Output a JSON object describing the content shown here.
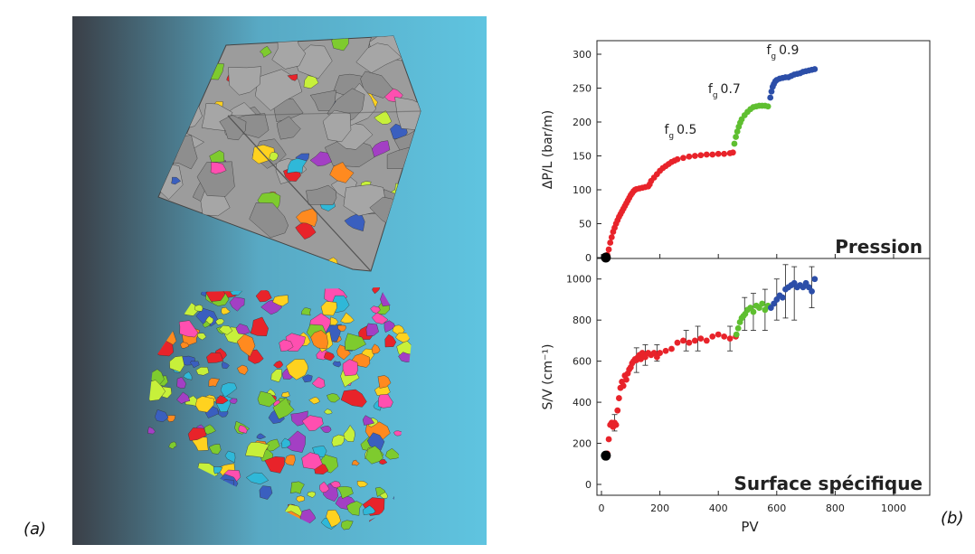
{
  "panel_labels": {
    "a": "(a)",
    "b": "(b)"
  },
  "panel_a": {
    "type": "3d-rendering",
    "cube_colors": [
      "#9c9c9c",
      "#7ecb2e",
      "#ffd21f",
      "#e8232a",
      "#3a5fbf",
      "#a33fc4",
      "#ff4fb0",
      "#2fb8d8",
      "#ff8a1f",
      "#c7f03a"
    ],
    "background": [
      "#3a3f47",
      "#5fc4e0"
    ]
  },
  "chart_data": [
    {
      "type": "scatter",
      "title": "Pression",
      "xlabel": "",
      "ylabel": "ΔP/L (bar/m)",
      "xlim": [
        0,
        1000
      ],
      "ylim": [
        0,
        320
      ],
      "x_ticks": [
        0,
        200,
        400,
        600,
        800,
        1000
      ],
      "y_ticks": [
        0,
        50,
        100,
        150,
        200,
        250,
        300
      ],
      "x_tick_labels_shown": false,
      "annotations": [
        {
          "main": "f",
          "sub": "g",
          "value": "0.5",
          "x": 215,
          "y": 183
        },
        {
          "main": "f",
          "sub": "g",
          "value": "0.7",
          "x": 365,
          "y": 243
        },
        {
          "main": "f",
          "sub": "g",
          "value": "0.9",
          "x": 565,
          "y": 300
        }
      ],
      "initial_point": {
        "x": 15,
        "y": 0,
        "color": "#000000"
      },
      "series": [
        {
          "color": "#e8232a",
          "points": [
            [
              20,
              4
            ],
            [
              25,
              12
            ],
            [
              30,
              22
            ],
            [
              35,
              30
            ],
            [
              40,
              38
            ],
            [
              45,
              44
            ],
            [
              50,
              50
            ],
            [
              55,
              55
            ],
            [
              60,
              60
            ],
            [
              65,
              64
            ],
            [
              70,
              68
            ],
            [
              75,
              72
            ],
            [
              80,
              76
            ],
            [
              85,
              80
            ],
            [
              90,
              84
            ],
            [
              95,
              88
            ],
            [
              100,
              92
            ],
            [
              105,
              95
            ],
            [
              110,
              98
            ],
            [
              115,
              100
            ],
            [
              120,
              101
            ],
            [
              130,
              102
            ],
            [
              140,
              103
            ],
            [
              150,
              104
            ],
            [
              160,
              105
            ],
            [
              165,
              108
            ],
            [
              170,
              113
            ],
            [
              180,
              118
            ],
            [
              190,
              123
            ],
            [
              200,
              128
            ],
            [
              210,
              132
            ],
            [
              220,
              135
            ],
            [
              230,
              138
            ],
            [
              240,
              141
            ],
            [
              250,
              143
            ],
            [
              260,
              145
            ],
            [
              280,
              147
            ],
            [
              300,
              149
            ],
            [
              320,
              150
            ],
            [
              340,
              151
            ],
            [
              360,
              152
            ],
            [
              380,
              152
            ],
            [
              400,
              153
            ],
            [
              420,
              153
            ],
            [
              440,
              154
            ],
            [
              450,
              155
            ]
          ]
        },
        {
          "color": "#5fbf30",
          "points": [
            [
              455,
              168
            ],
            [
              460,
              178
            ],
            [
              465,
              186
            ],
            [
              470,
              193
            ],
            [
              475,
              199
            ],
            [
              480,
              204
            ],
            [
              490,
              210
            ],
            [
              500,
              215
            ],
            [
              510,
              219
            ],
            [
              520,
              222
            ],
            [
              530,
              223
            ],
            [
              540,
              224
            ],
            [
              550,
              224
            ],
            [
              560,
              224
            ],
            [
              570,
              223
            ]
          ]
        },
        {
          "color": "#2c4ea8",
          "points": [
            [
              578,
              236
            ],
            [
              582,
              245
            ],
            [
              586,
              252
            ],
            [
              590,
              256
            ],
            [
              595,
              260
            ],
            [
              600,
              262
            ],
            [
              610,
              264
            ],
            [
              620,
              265
            ],
            [
              630,
              266
            ],
            [
              640,
              266
            ],
            [
              650,
              268
            ],
            [
              660,
              270
            ],
            [
              670,
              271
            ],
            [
              680,
              272
            ],
            [
              690,
              274
            ],
            [
              700,
              275
            ],
            [
              710,
              276
            ],
            [
              720,
              277
            ],
            [
              730,
              278
            ]
          ]
        }
      ]
    },
    {
      "type": "scatter",
      "title": "Surface spécifique",
      "xlabel": "PV",
      "ylabel": "S/V (cm⁻¹)",
      "xlim": [
        0,
        1000
      ],
      "ylim": [
        0,
        1100
      ],
      "x_ticks": [
        0,
        200,
        400,
        600,
        800,
        1000
      ],
      "y_ticks": [
        0,
        200,
        400,
        600,
        800,
        1000
      ],
      "initial_point": {
        "x": 15,
        "y": 140,
        "color": "#000000"
      },
      "series": [
        {
          "color": "#e8232a",
          "points": [
            [
              20,
              150
            ],
            [
              25,
              220
            ],
            [
              30,
              290
            ],
            [
              35,
              300
            ],
            [
              40,
              280
            ],
            [
              45,
              300
            ],
            [
              50,
              290
            ],
            [
              55,
              360
            ],
            [
              60,
              420
            ],
            [
              65,
              470
            ],
            [
              70,
              500
            ],
            [
              75,
              480
            ],
            [
              80,
              530
            ],
            [
              85,
              510
            ],
            [
              90,
              540
            ],
            [
              95,
              560
            ],
            [
              100,
              570
            ],
            [
              105,
              590
            ],
            [
              110,
              600
            ],
            [
              115,
              610
            ],
            [
              120,
              605
            ],
            [
              125,
              620
            ],
            [
              130,
              630
            ],
            [
              135,
              610
            ],
            [
              140,
              640
            ],
            [
              145,
              630
            ],
            [
              150,
              620
            ],
            [
              160,
              640
            ],
            [
              170,
              630
            ],
            [
              180,
              640
            ],
            [
              190,
              620
            ],
            [
              200,
              640
            ],
            [
              220,
              650
            ],
            [
              240,
              660
            ],
            [
              260,
              690
            ],
            [
              280,
              700
            ],
            [
              300,
              690
            ],
            [
              320,
              700
            ],
            [
              340,
              710
            ],
            [
              360,
              700
            ],
            [
              380,
              720
            ],
            [
              400,
              730
            ],
            [
              420,
              720
            ],
            [
              440,
              710
            ],
            [
              460,
              720
            ]
          ],
          "error_bars": [
            [
              45,
              300,
              40
            ],
            [
              120,
              605,
              60
            ],
            [
              150,
              630,
              50
            ],
            [
              190,
              640,
              40
            ],
            [
              290,
              700,
              50
            ],
            [
              330,
              710,
              60
            ],
            [
              440,
              710,
              60
            ]
          ]
        },
        {
          "color": "#5fbf30",
          "points": [
            [
              462,
              730
            ],
            [
              468,
              760
            ],
            [
              474,
              790
            ],
            [
              480,
              810
            ],
            [
              486,
              820
            ],
            [
              492,
              830
            ],
            [
              500,
              850
            ],
            [
              510,
              860
            ],
            [
              520,
              840
            ],
            [
              530,
              870
            ],
            [
              540,
              860
            ],
            [
              550,
              880
            ],
            [
              560,
              850
            ],
            [
              570,
              870
            ]
          ],
          "error_bars": [
            [
              490,
              830,
              80
            ],
            [
              520,
              840,
              90
            ],
            [
              560,
              850,
              100
            ]
          ]
        },
        {
          "color": "#2c4ea8",
          "points": [
            [
              580,
              860
            ],
            [
              590,
              880
            ],
            [
              600,
              900
            ],
            [
              610,
              920
            ],
            [
              620,
              910
            ],
            [
              630,
              950
            ],
            [
              640,
              960
            ],
            [
              650,
              970
            ],
            [
              660,
              980
            ],
            [
              670,
              960
            ],
            [
              680,
              970
            ],
            [
              690,
              960
            ],
            [
              700,
              980
            ],
            [
              710,
              960
            ],
            [
              720,
              940
            ],
            [
              730,
              1000
            ]
          ],
          "error_bars": [
            [
              600,
              900,
              100
            ],
            [
              630,
              940,
              130
            ],
            [
              660,
              930,
              130
            ],
            [
              720,
              960,
              100
            ]
          ]
        }
      ]
    }
  ]
}
